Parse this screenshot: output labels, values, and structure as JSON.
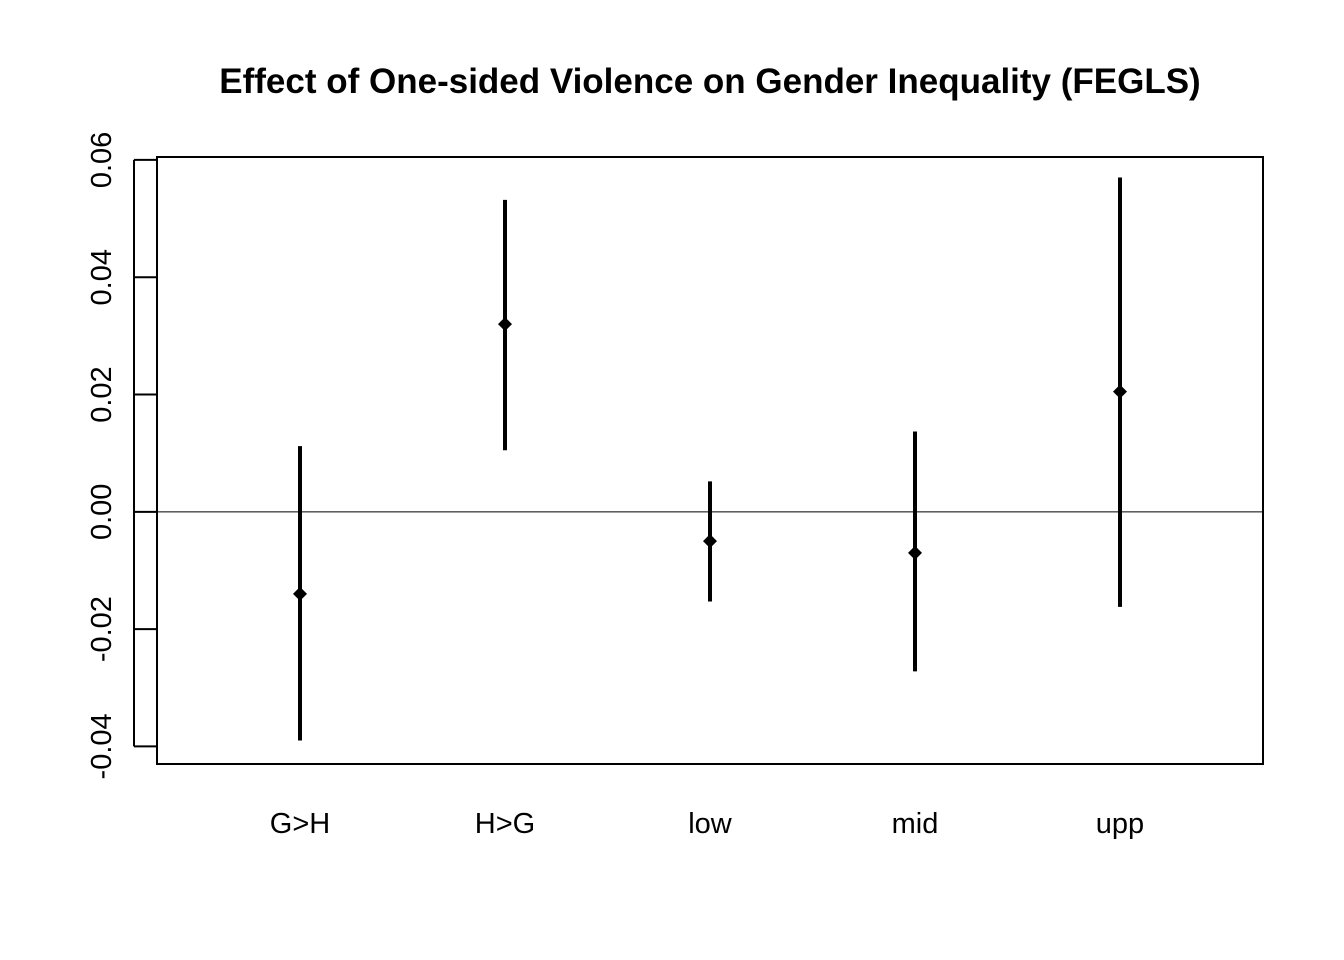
{
  "chart_data": {
    "type": "errorbar",
    "title": "Effect of One-sided Violence on Gender Inequality (FEGLS)",
    "xlabel": "",
    "ylabel": "",
    "categories": [
      "G>H",
      "H>G",
      "low",
      "mid",
      "upp"
    ],
    "estimates": [
      -0.014,
      0.032,
      -0.005,
      -0.007,
      0.0205
    ],
    "lower": [
      -0.039,
      0.0105,
      -0.0153,
      -0.0272,
      -0.0162
    ],
    "upper": [
      0.0112,
      0.0532,
      0.0052,
      0.0137,
      0.057
    ],
    "ylim": [
      -0.043,
      0.0605
    ],
    "yticks": [
      "-0.04",
      "-0.02",
      "0.00",
      "0.02",
      "0.04",
      "0.06"
    ],
    "reference_line": 0,
    "grid": false,
    "legend": "none"
  }
}
